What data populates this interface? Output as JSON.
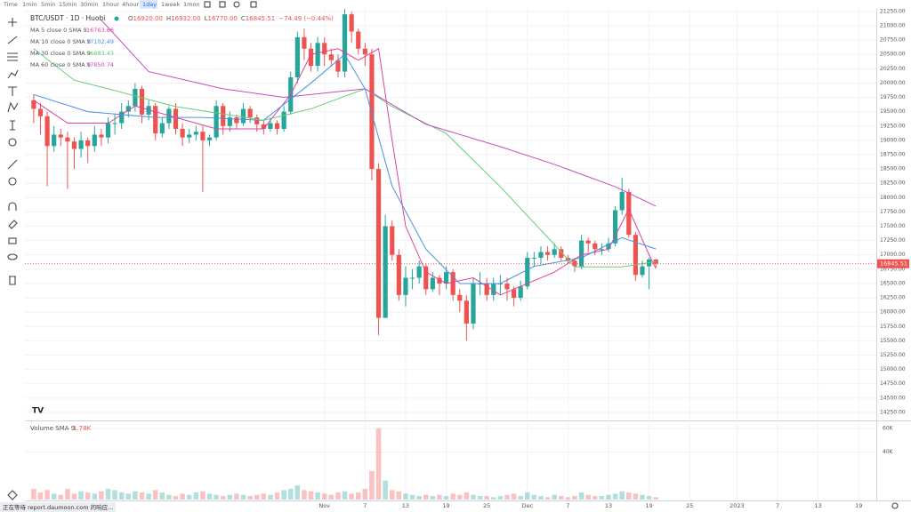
{
  "toolbar": {
    "intervals": [
      "Time",
      "1min",
      "5min",
      "15min",
      "30min",
      "1hour",
      "4hour",
      "1day",
      "1week",
      "1mon"
    ]
  },
  "status_bar": "正在等待 report.daumoon.com 的响应...",
  "chart_data": [
    {
      "type": "candlestick",
      "title": "BTC/USDT · 1D · Huobi",
      "quote": [
        {
          "key": "O",
          "value": "16920.00"
        },
        {
          "key": "H",
          "value": "16932.00"
        },
        {
          "key": "L",
          "value": "16770.00"
        },
        {
          "key": "C",
          "value": "16845.51"
        }
      ],
      "change": "−74.49 (−0.44%)",
      "up_color": "#26a69a",
      "down_color": "#ef5350",
      "x": [
        -43,
        -42,
        -41,
        -40,
        -39,
        -38,
        -37,
        -36,
        -35,
        -34,
        -33,
        -32,
        -31,
        -30,
        -29,
        -28,
        -27,
        -26,
        -25,
        -24,
        -23,
        -22,
        -21,
        -20,
        -19,
        -18,
        -17,
        -16,
        -15,
        -14,
        -13,
        -12,
        -11,
        -10,
        -9,
        -8,
        -7,
        -6,
        -5,
        -4,
        -3,
        -2,
        -1,
        0,
        1,
        2,
        3,
        4,
        5,
        6,
        7,
        8,
        9,
        10,
        11,
        12,
        13,
        14,
        15,
        16,
        17,
        18,
        19,
        20,
        21,
        22,
        23,
        24,
        25,
        26,
        27,
        28,
        29,
        30,
        31,
        32,
        33,
        34,
        35,
        36,
        37,
        38,
        39,
        40,
        41,
        42,
        43,
        44,
        45,
        46,
        47,
        48,
        49
      ],
      "open": [
        19700,
        19550,
        19420,
        18900,
        19100,
        19050,
        18980,
        18850,
        19000,
        18900,
        19100,
        19050,
        19300,
        19300,
        19500,
        19600,
        19900,
        19450,
        19600,
        19120,
        19300,
        19550,
        19200,
        19050,
        19100,
        19150,
        19000,
        19050,
        19600,
        19250,
        19400,
        19300,
        19550,
        19400,
        19280,
        19200,
        19300,
        19200,
        19500,
        20100,
        20800,
        20600,
        20300,
        20700,
        20500,
        20400,
        20200,
        21200,
        20900,
        20600,
        20500,
        18500,
        15900,
        17500,
        17000,
        16300,
        16600,
        16600,
        16800,
        16400,
        16600,
        16500,
        16700,
        16300,
        16200,
        15800,
        16500,
        16500,
        16300,
        16500,
        16500,
        16400,
        16250,
        16450,
        16950,
        16950,
        17050,
        17000,
        17100,
        16950,
        16900,
        16800,
        17250,
        17200,
        17100,
        17100,
        17200,
        17780,
        18100,
        17350,
        16650,
        16800,
        16920
      ],
      "high": [
        19800,
        19650,
        19500,
        19250,
        19200,
        19150,
        19050,
        19150,
        19050,
        19250,
        19200,
        19400,
        19450,
        19650,
        19700,
        20000,
        19950,
        19700,
        19650,
        19400,
        19600,
        19650,
        19300,
        19200,
        19250,
        19250,
        19100,
        19700,
        19650,
        19500,
        19450,
        19650,
        19600,
        19450,
        19350,
        19400,
        19350,
        19600,
        20200,
        20900,
        20950,
        20700,
        20800,
        20800,
        20600,
        20500,
        21300,
        21250,
        20950,
        20700,
        20600,
        18600,
        17700,
        17600,
        17100,
        16800,
        16750,
        16900,
        16850,
        16700,
        16650,
        16800,
        16750,
        16400,
        16300,
        16600,
        16700,
        16600,
        16600,
        16650,
        16600,
        16450,
        16550,
        17050,
        17050,
        17150,
        17150,
        17200,
        17150,
        17000,
        16950,
        17350,
        17300,
        17250,
        17200,
        17300,
        17850,
        18350,
        18150,
        17400,
        16900,
        16950,
        16932
      ],
      "low": [
        19300,
        19100,
        18200,
        18800,
        18900,
        18150,
        18500,
        18700,
        18600,
        18800,
        18900,
        18950,
        19100,
        19200,
        19400,
        19500,
        19300,
        19350,
        19000,
        19050,
        19200,
        19100,
        18900,
        18950,
        19000,
        18100,
        18900,
        19000,
        19100,
        19150,
        19200,
        19250,
        19300,
        19150,
        19100,
        19150,
        19100,
        19150,
        19450,
        20000,
        20400,
        20200,
        20200,
        20300,
        20300,
        20100,
        20100,
        20700,
        20500,
        20300,
        18300,
        15600,
        15900,
        16900,
        16200,
        16100,
        16400,
        16500,
        16300,
        16350,
        16300,
        16400,
        16200,
        16000,
        15500,
        15700,
        16300,
        16200,
        16200,
        16300,
        16200,
        16100,
        16200,
        16400,
        16800,
        16850,
        16900,
        16950,
        16900,
        16850,
        16700,
        16750,
        17050,
        17000,
        17000,
        17050,
        17150,
        17700,
        17300,
        16550,
        16600,
        16400,
        16770
      ],
      "close": [
        19550,
        19420,
        18900,
        19100,
        19050,
        18980,
        18850,
        19000,
        18900,
        19100,
        19050,
        19300,
        19300,
        19500,
        19600,
        19900,
        19450,
        19600,
        19120,
        19300,
        19550,
        19200,
        19050,
        19100,
        19150,
        19000,
        19050,
        19600,
        19250,
        19400,
        19300,
        19550,
        19400,
        19280,
        19200,
        19300,
        19200,
        19500,
        20100,
        20800,
        20600,
        20300,
        20700,
        20500,
        20400,
        20200,
        21200,
        20900,
        20600,
        20500,
        18500,
        15900,
        17500,
        17000,
        16300,
        16600,
        16600,
        16800,
        16400,
        16600,
        16500,
        16700,
        16300,
        16200,
        15800,
        16500,
        16500,
        16300,
        16500,
        16500,
        16400,
        16250,
        16450,
        16950,
        16950,
        17050,
        17000,
        17100,
        16950,
        16900,
        16800,
        17250,
        17200,
        17100,
        17100,
        17200,
        17780,
        18100,
        17350,
        16650,
        16800,
        16920,
        16845.51
      ],
      "series": [
        {
          "name": "MA 5 close 0 SMA 9",
          "color": "#e0409c",
          "x": [
            -43,
            -38,
            -32,
            -28,
            -22,
            -16,
            -9,
            -5,
            -2,
            2,
            5,
            8,
            10,
            12,
            15,
            18,
            22,
            26,
            30,
            34,
            38,
            42,
            45,
            48,
            49
          ],
          "values": [
            19700,
            19300,
            19300,
            19600,
            19400,
            19200,
            19200,
            19800,
            20500,
            20600,
            20400,
            20600,
            19000,
            17500,
            16700,
            16500,
            16600,
            16300,
            16500,
            16700,
            17000,
            17100,
            17800,
            17000,
            16763.66
          ]
        },
        {
          "name": "MA 10 close 0 SMA 9",
          "color": "#4a90e2",
          "x": [
            -43,
            -35,
            -25,
            -18,
            -9,
            -2,
            3,
            6,
            10,
            15,
            20,
            26,
            31,
            38,
            44,
            49
          ],
          "values": [
            19800,
            19500,
            19400,
            19400,
            19350,
            20000,
            20500,
            19900,
            18200,
            17100,
            16500,
            16500,
            16800,
            16950,
            17300,
            17102.49
          ]
        },
        {
          "name": "MA 30 close 0 SMA 9",
          "color": "#66cc77",
          "x": [
            -43,
            -37,
            -32,
            -22,
            -9,
            -2,
            6,
            10,
            18,
            26,
            34,
            37,
            44,
            49
          ],
          "values": [
            20600,
            20050,
            19900,
            19590,
            19350,
            19550,
            19900,
            19590,
            19120,
            18190,
            17180,
            16790,
            16790,
            16883.43
          ]
        },
        {
          "name": "MA 60 close 0 SMA 9",
          "color": "#c54bc0",
          "x": [
            -33,
            -26,
            -15,
            -6,
            6,
            15,
            26,
            34,
            43,
            49
          ],
          "values": [
            21100,
            20200,
            19900,
            19750,
            19900,
            19280,
            18890,
            18580,
            18190,
            17850.74
          ]
        }
      ],
      "ylim": [
        14125,
        21295
      ],
      "yticks": [
        {
          "value": 14250,
          "label": "14250.00"
        },
        {
          "value": 14500,
          "label": "14500.00"
        },
        {
          "value": 14750,
          "label": "14750.00"
        },
        {
          "value": 15000,
          "label": "15000.00"
        },
        {
          "value": 15250,
          "label": "15250.00"
        },
        {
          "value": 15500,
          "label": "15500.00"
        },
        {
          "value": 15750,
          "label": "15750.00"
        },
        {
          "value": 16000,
          "label": "16000.00"
        },
        {
          "value": 16250,
          "label": "16250.00"
        },
        {
          "value": 16500,
          "label": "16500.00"
        },
        {
          "value": 16750,
          "label": "16750.00"
        },
        {
          "value": 17000,
          "label": "17000.00"
        },
        {
          "value": 17250,
          "label": "17250.00"
        },
        {
          "value": 17500,
          "label": "17500.00"
        },
        {
          "value": 17750,
          "label": "17750.00"
        },
        {
          "value": 18000,
          "label": "18000.00"
        },
        {
          "value": 18250,
          "label": "18250.00"
        },
        {
          "value": 18500,
          "label": "18500.00"
        },
        {
          "value": 18750,
          "label": "18750.00"
        },
        {
          "value": 19000,
          "label": "19000.00"
        },
        {
          "value": 19250,
          "label": "19250.00"
        },
        {
          "value": 19500,
          "label": "19500.00"
        },
        {
          "value": 19750,
          "label": "19750.00"
        },
        {
          "value": 20000,
          "label": "20000.00"
        },
        {
          "value": 20250,
          "label": "20250.00"
        },
        {
          "value": 20500,
          "label": "20500.00"
        },
        {
          "value": 20750,
          "label": "20750.00"
        },
        {
          "value": 21000,
          "label": "21000.00"
        },
        {
          "value": 21250,
          "label": "21250.00"
        }
      ],
      "xlim": [
        -44.3,
        81.6
      ],
      "xticks": [
        {
          "value": 0,
          "label": "Nov"
        },
        {
          "value": 6,
          "label": "7"
        },
        {
          "value": 12,
          "label": "13"
        },
        {
          "value": 18,
          "label": "19"
        },
        {
          "value": 24,
          "label": "25"
        },
        {
          "value": 30,
          "label": "Dec"
        },
        {
          "value": 36,
          "label": "7"
        },
        {
          "value": 42,
          "label": "13"
        },
        {
          "value": 48,
          "label": "19"
        },
        {
          "value": 54,
          "label": "25"
        },
        {
          "value": 61,
          "label": "2023"
        },
        {
          "value": 67,
          "label": "7"
        },
        {
          "value": 73,
          "label": "13"
        },
        {
          "value": 79,
          "label": "19"
        }
      ],
      "grid": true
    },
    {
      "type": "bar",
      "title": "Volume SMA 9",
      "legend_value": "1.78K",
      "values": [
        9000,
        6000,
        8000,
        5000,
        4000,
        9000,
        5000,
        7000,
        6000,
        5000,
        7000,
        9000,
        8000,
        6000,
        5000,
        7000,
        6000,
        5000,
        8000,
        6000,
        4000,
        3000,
        5000,
        4000,
        6000,
        7000,
        5000,
        4000,
        3000,
        4000,
        5000,
        4000,
        3000,
        4000,
        5000,
        4000,
        6000,
        8000,
        9000,
        12000,
        8000,
        7000,
        6000,
        5000,
        4000,
        6000,
        7000,
        5000,
        6000,
        9000,
        24000,
        60000,
        16000,
        8000,
        7000,
        5000,
        4000,
        3000,
        4000,
        3000,
        4000,
        3000,
        5000,
        4000,
        6000,
        4000,
        3000,
        3000,
        2000,
        3000,
        4000,
        5000,
        3000,
        6000,
        4000,
        3000,
        2000,
        4000,
        3000,
        2000,
        3000,
        6000,
        4000,
        3000,
        3000,
        4000,
        5000,
        7000,
        6000,
        5000,
        4000,
        3000,
        2000
      ],
      "ylim": [
        0,
        65200
      ],
      "yticks": [
        {
          "value": 40000,
          "label": "40K"
        },
        {
          "value": 60000,
          "label": "60K"
        }
      ]
    }
  ]
}
